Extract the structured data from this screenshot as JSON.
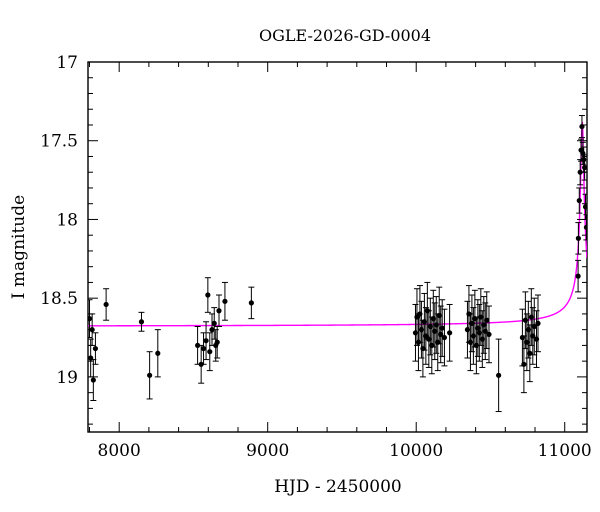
{
  "chart_data": {
    "type": "scatter",
    "title": "OGLE-2026-GD-0004",
    "xlabel": "HJD - 2450000",
    "ylabel": "I magnitude",
    "xlim": [
      7790,
      11150
    ],
    "ylim": [
      19.35,
      17.0
    ],
    "y_inverted": true,
    "x_ticks": [
      8000,
      9000,
      10000,
      11000
    ],
    "y_ticks": [
      17,
      17.5,
      18,
      18.5,
      19
    ],
    "x_tick_labels": [
      "8000",
      "9000",
      "10000",
      "11000"
    ],
    "y_tick_labels": [
      "17",
      "17.5",
      "18",
      "18.5",
      "19"
    ],
    "grid": false,
    "colors": {
      "points": "#000000",
      "model": "#ff00ff",
      "axes": "#000000"
    },
    "series": [
      {
        "type": "scatter_errorbars",
        "points": [
          {
            "x": 7800,
            "y": 18.63,
            "e": 0.12
          },
          {
            "x": 7808,
            "y": 18.88,
            "e": 0.12
          },
          {
            "x": 7818,
            "y": 18.7,
            "e": 0.1
          },
          {
            "x": 7826,
            "y": 19.02,
            "e": 0.13
          },
          {
            "x": 7840,
            "y": 18.82,
            "e": 0.1
          },
          {
            "x": 7912,
            "y": 18.54,
            "e": 0.1
          },
          {
            "x": 8150,
            "y": 18.65,
            "e": 0.06
          },
          {
            "x": 8205,
            "y": 18.99,
            "e": 0.15
          },
          {
            "x": 8260,
            "y": 18.85,
            "e": 0.15
          },
          {
            "x": 8528,
            "y": 18.8,
            "e": 0.12
          },
          {
            "x": 8552,
            "y": 18.92,
            "e": 0.12
          },
          {
            "x": 8568,
            "y": 18.82,
            "e": 0.1
          },
          {
            "x": 8585,
            "y": 18.77,
            "e": 0.12
          },
          {
            "x": 8597,
            "y": 18.48,
            "e": 0.11
          },
          {
            "x": 8610,
            "y": 18.84,
            "e": 0.12
          },
          {
            "x": 8625,
            "y": 18.7,
            "e": 0.1
          },
          {
            "x": 8640,
            "y": 18.66,
            "e": 0.1
          },
          {
            "x": 8650,
            "y": 18.8,
            "e": 0.1
          },
          {
            "x": 8660,
            "y": 18.78,
            "e": 0.1
          },
          {
            "x": 8672,
            "y": 18.58,
            "e": 0.1
          },
          {
            "x": 8712,
            "y": 18.52,
            "e": 0.12
          },
          {
            "x": 8890,
            "y": 18.53,
            "e": 0.1
          },
          {
            "x": 9995,
            "y": 18.72,
            "e": 0.18
          },
          {
            "x": 10005,
            "y": 18.62,
            "e": 0.18
          },
          {
            "x": 10015,
            "y": 18.78,
            "e": 0.18
          },
          {
            "x": 10025,
            "y": 18.6,
            "e": 0.18
          },
          {
            "x": 10035,
            "y": 18.7,
            "e": 0.18
          },
          {
            "x": 10045,
            "y": 18.82,
            "e": 0.18
          },
          {
            "x": 10055,
            "y": 18.65,
            "e": 0.18
          },
          {
            "x": 10065,
            "y": 18.74,
            "e": 0.18
          },
          {
            "x": 10075,
            "y": 18.58,
            "e": 0.18
          },
          {
            "x": 10085,
            "y": 18.76,
            "e": 0.18
          },
          {
            "x": 10095,
            "y": 18.68,
            "e": 0.18
          },
          {
            "x": 10105,
            "y": 18.8,
            "e": 0.18
          },
          {
            "x": 10115,
            "y": 18.63,
            "e": 0.18
          },
          {
            "x": 10125,
            "y": 18.71,
            "e": 0.18
          },
          {
            "x": 10135,
            "y": 18.67,
            "e": 0.18
          },
          {
            "x": 10145,
            "y": 18.78,
            "e": 0.18
          },
          {
            "x": 10155,
            "y": 18.61,
            "e": 0.18
          },
          {
            "x": 10165,
            "y": 18.73,
            "e": 0.18
          },
          {
            "x": 10175,
            "y": 18.69,
            "e": 0.18
          },
          {
            "x": 10190,
            "y": 18.75,
            "e": 0.18
          },
          {
            "x": 10225,
            "y": 18.72,
            "e": 0.18
          },
          {
            "x": 10345,
            "y": 18.7,
            "e": 0.18
          },
          {
            "x": 10355,
            "y": 18.6,
            "e": 0.18
          },
          {
            "x": 10365,
            "y": 18.78,
            "e": 0.18
          },
          {
            "x": 10375,
            "y": 18.66,
            "e": 0.18
          },
          {
            "x": 10385,
            "y": 18.74,
            "e": 0.18
          },
          {
            "x": 10395,
            "y": 18.63,
            "e": 0.18
          },
          {
            "x": 10405,
            "y": 18.8,
            "e": 0.18
          },
          {
            "x": 10415,
            "y": 18.69,
            "e": 0.18
          },
          {
            "x": 10425,
            "y": 18.72,
            "e": 0.18
          },
          {
            "x": 10435,
            "y": 18.62,
            "e": 0.18
          },
          {
            "x": 10445,
            "y": 18.76,
            "e": 0.18
          },
          {
            "x": 10455,
            "y": 18.67,
            "e": 0.18
          },
          {
            "x": 10465,
            "y": 18.71,
            "e": 0.18
          },
          {
            "x": 10475,
            "y": 18.64,
            "e": 0.18
          },
          {
            "x": 10490,
            "y": 18.73,
            "e": 0.18
          },
          {
            "x": 10555,
            "y": 18.99,
            "e": 0.23
          },
          {
            "x": 10715,
            "y": 18.75,
            "e": 0.18
          },
          {
            "x": 10725,
            "y": 18.92,
            "e": 0.18
          },
          {
            "x": 10735,
            "y": 18.64,
            "e": 0.18
          },
          {
            "x": 10745,
            "y": 18.78,
            "e": 0.18
          },
          {
            "x": 10755,
            "y": 18.7,
            "e": 0.18
          },
          {
            "x": 10765,
            "y": 18.85,
            "e": 0.18
          },
          {
            "x": 10775,
            "y": 18.62,
            "e": 0.18
          },
          {
            "x": 10785,
            "y": 18.74,
            "e": 0.18
          },
          {
            "x": 10795,
            "y": 18.68,
            "e": 0.18
          },
          {
            "x": 10810,
            "y": 18.76,
            "e": 0.18
          },
          {
            "x": 10820,
            "y": 18.66,
            "e": 0.18
          },
          {
            "x": 11090,
            "y": 18.36,
            "e": 0.1
          },
          {
            "x": 11092,
            "y": 18.12,
            "e": 0.1
          },
          {
            "x": 11098,
            "y": 17.88,
            "e": 0.08
          },
          {
            "x": 11104,
            "y": 17.7,
            "e": 0.08
          },
          {
            "x": 11110,
            "y": 17.56,
            "e": 0.07
          },
          {
            "x": 11116,
            "y": 17.41,
            "e": 0.07
          },
          {
            "x": 11122,
            "y": 17.58,
            "e": 0.07
          },
          {
            "x": 11128,
            "y": 17.62,
            "e": 0.08
          },
          {
            "x": 11134,
            "y": 17.67,
            "e": 0.08
          },
          {
            "x": 11140,
            "y": 17.92,
            "e": 0.08
          },
          {
            "x": 11146,
            "y": 18.05,
            "e": 0.08
          }
        ]
      },
      {
        "type": "model_line",
        "baseline": 18.68,
        "peak_x": 11118,
        "peak_y": 17.38
      }
    ]
  }
}
